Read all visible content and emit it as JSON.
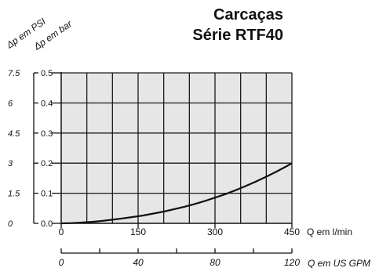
{
  "chart_data": {
    "type": "line",
    "title": "Carcaças",
    "subtitle": "Série RTF40",
    "ylabel_primary": "Δp em bar",
    "ylabel_secondary": "Δp em PSI",
    "xlabel_primary": "Q em l/min",
    "xlabel_secondary": "Q em US GPM",
    "xlim": [
      0,
      450
    ],
    "ylim": [
      0,
      0.5
    ],
    "x_ticks": [
      0,
      150,
      300,
      450
    ],
    "x_tick_labels": [
      "0",
      "150",
      "300",
      "450"
    ],
    "y_ticks": [
      0,
      0.1,
      0.2,
      0.3,
      0.4,
      0.5
    ],
    "y_tick_labels": [
      "0.0",
      "0.1",
      "0.2",
      "0.3",
      "0.4",
      "0.5"
    ],
    "y_secondary_ticks": [
      0,
      0.1,
      0.2,
      0.3,
      0.4,
      0.5
    ],
    "y_secondary_tick_labels": [
      "0",
      "1.5",
      "3",
      "4.5",
      "6",
      "7.5"
    ],
    "x_secondary_ticks": [
      0,
      40,
      80,
      120
    ],
    "x_secondary_tick_labels": [
      "0",
      "40",
      "80",
      "120"
    ],
    "x_secondary_lim": [
      0,
      120
    ],
    "grid": true,
    "colors": {
      "plot_bg": "#e6e6e6",
      "grid": "#1a1a1a",
      "line": "#111111"
    },
    "series": [
      {
        "x": [
          0,
          20,
          40,
          60,
          80,
          100,
          120,
          140,
          160,
          180,
          200,
          220,
          240,
          260,
          280,
          300,
          320,
          340,
          360,
          380,
          400,
          420,
          440,
          450
        ],
        "y": [
          0,
          0.0008,
          0.0025,
          0.005,
          0.008,
          0.012,
          0.0165,
          0.021,
          0.026,
          0.0325,
          0.039,
          0.047,
          0.055,
          0.064,
          0.074,
          0.0855,
          0.097,
          0.11,
          0.124,
          0.139,
          0.155,
          0.172,
          0.19,
          0.2
        ]
      }
    ]
  }
}
